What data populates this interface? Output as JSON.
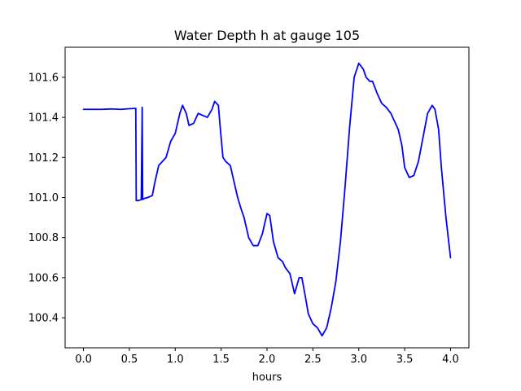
{
  "chart_data": {
    "type": "line",
    "title": "Water Depth h at gauge 105",
    "xlabel": "hours",
    "ylabel": "",
    "xlim": [
      -0.2,
      4.2
    ],
    "ylim": [
      100.25,
      101.75
    ],
    "xticks": [
      0.0,
      0.5,
      1.0,
      1.5,
      2.0,
      2.5,
      3.0,
      3.5,
      4.0
    ],
    "xtick_labels": [
      "0.0",
      "0.5",
      "1.0",
      "1.5",
      "2.0",
      "2.5",
      "3.0",
      "3.5",
      "4.0"
    ],
    "yticks": [
      100.4,
      100.6,
      100.8,
      101.0,
      101.2,
      101.4,
      101.6
    ],
    "ytick_labels": [
      "100.4",
      "100.6",
      "100.8",
      "101.0",
      "101.2",
      "101.4",
      "101.6"
    ],
    "grid": false,
    "series": [
      {
        "color": "#0000ff",
        "x": [
          0.0,
          0.1,
          0.2,
          0.3,
          0.4,
          0.5,
          0.57,
          0.575,
          0.6,
          0.63,
          0.64,
          0.645,
          0.65,
          0.66,
          0.7,
          0.75,
          0.78,
          0.82,
          0.86,
          0.9,
          0.95,
          1.0,
          1.05,
          1.08,
          1.12,
          1.15,
          1.2,
          1.25,
          1.3,
          1.35,
          1.4,
          1.43,
          1.47,
          1.49,
          1.52,
          1.55,
          1.6,
          1.63,
          1.68,
          1.72,
          1.75,
          1.8,
          1.85,
          1.9,
          1.95,
          2.0,
          2.03,
          2.07,
          2.12,
          2.17,
          2.2,
          2.25,
          2.3,
          2.35,
          2.38,
          2.42,
          2.45,
          2.5,
          2.55,
          2.6,
          2.65,
          2.7,
          2.75,
          2.8,
          2.85,
          2.9,
          2.95,
          3.0,
          3.05,
          3.08,
          3.12,
          3.15,
          3.2,
          3.25,
          3.3,
          3.35,
          3.4,
          3.43,
          3.47,
          3.5,
          3.55,
          3.6,
          3.65,
          3.7,
          3.75,
          3.8,
          3.83,
          3.87,
          3.9,
          3.95,
          4.0
        ],
        "y": [
          101.44,
          101.44,
          101.44,
          101.442,
          101.44,
          101.443,
          101.445,
          100.985,
          100.985,
          100.99,
          101.45,
          100.99,
          100.992,
          100.995,
          101.0,
          101.01,
          101.08,
          101.16,
          101.18,
          101.2,
          101.28,
          101.32,
          101.42,
          101.46,
          101.42,
          101.36,
          101.37,
          101.42,
          101.41,
          101.4,
          101.44,
          101.48,
          101.46,
          101.35,
          101.2,
          101.18,
          101.16,
          101.1,
          101.0,
          100.94,
          100.9,
          100.8,
          100.76,
          100.76,
          100.82,
          100.92,
          100.91,
          100.78,
          100.7,
          100.68,
          100.65,
          100.62,
          100.52,
          100.6,
          100.6,
          100.5,
          100.42,
          100.37,
          100.35,
          100.31,
          100.35,
          100.45,
          100.58,
          100.78,
          101.05,
          101.35,
          101.6,
          101.67,
          101.64,
          101.6,
          101.58,
          101.58,
          101.52,
          101.47,
          101.45,
          101.42,
          101.37,
          101.34,
          101.26,
          101.15,
          101.1,
          101.11,
          101.18,
          101.3,
          101.42,
          101.46,
          101.44,
          101.34,
          101.15,
          100.9,
          100.7
        ]
      }
    ]
  }
}
